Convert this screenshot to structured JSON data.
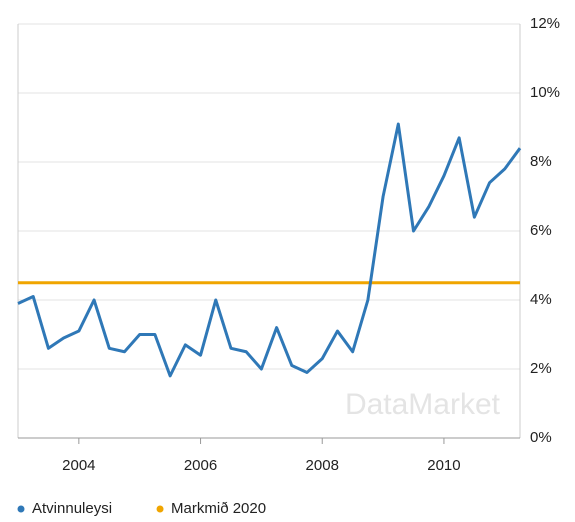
{
  "chart_data": {
    "type": "line",
    "x": [
      2003,
      2003.25,
      2003.5,
      2003.75,
      2004,
      2004.25,
      2004.5,
      2004.75,
      2005,
      2005.25,
      2005.5,
      2005.75,
      2006,
      2006.25,
      2006.5,
      2006.75,
      2007,
      2007.25,
      2007.5,
      2007.75,
      2008,
      2008.25,
      2008.5,
      2008.75,
      2009,
      2009.25,
      2009.5,
      2009.75,
      2010,
      2010.25,
      2010.5,
      2010.75,
      2011,
      2011.25
    ],
    "series": [
      {
        "name": "Atvinnuleysi",
        "color": "#2f78b7",
        "values": [
          3.9,
          4.1,
          2.6,
          2.9,
          3.1,
          4.0,
          2.6,
          2.5,
          3.0,
          3.0,
          1.8,
          2.7,
          2.4,
          4.0,
          2.6,
          2.5,
          2.0,
          3.2,
          2.1,
          1.9,
          2.3,
          3.1,
          2.5,
          4.0,
          7.0,
          9.1,
          6.0,
          6.7,
          7.6,
          8.7,
          6.4,
          7.4,
          7.8,
          8.4
        ]
      }
    ],
    "hlines": [
      {
        "name": "Markmið 2020",
        "color": "#f0a500",
        "value": 4.5
      }
    ],
    "xlim": [
      2003,
      2011.25
    ],
    "xticks": [
      2004,
      2006,
      2008,
      2010
    ],
    "ylim": [
      0,
      12
    ],
    "yticks": [
      {
        "value": 0,
        "label": "0%"
      },
      {
        "value": 2,
        "label": "2%"
      },
      {
        "value": 4,
        "label": "4%"
      },
      {
        "value": 6,
        "label": "6%"
      },
      {
        "value": 8,
        "label": "8%"
      },
      {
        "value": 10,
        "label": "10%"
      },
      {
        "value": 12,
        "label": "12%"
      }
    ],
    "grid": true,
    "watermark": "DataMarket"
  }
}
